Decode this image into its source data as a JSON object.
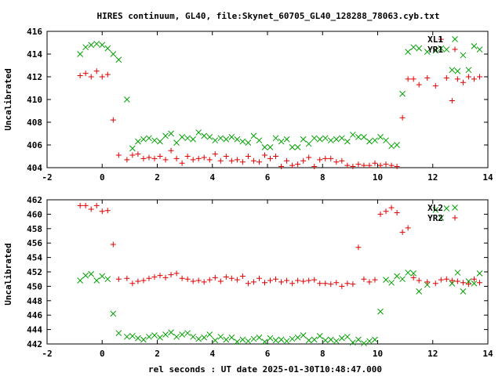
{
  "chart_data": [
    {
      "type": "scatter",
      "title": "HIRES continuum, GL40, file:Skynet_60705_GL40_128288_78063.cyb.txt",
      "xlabel": "",
      "ylabel": "Uncalibrated",
      "xlim": [
        -2,
        14
      ],
      "ylim": [
        404,
        416
      ],
      "xticks": [
        "-2",
        "0",
        "2",
        "4",
        "6",
        "8",
        "10",
        "12",
        "14"
      ],
      "yticks": [
        "404",
        "406",
        "408",
        "410",
        "412",
        "414",
        "416"
      ],
      "legend_position": "top-right",
      "grid": false,
      "series": [
        {
          "name": "XL1",
          "marker": "x",
          "color": "#00a000",
          "x": [
            -0.8,
            -0.6,
            -0.4,
            -0.2,
            0.0,
            0.2,
            0.4,
            0.6,
            0.9,
            1.1,
            1.3,
            1.5,
            1.7,
            1.9,
            2.1,
            2.3,
            2.5,
            2.7,
            2.9,
            3.1,
            3.3,
            3.5,
            3.7,
            3.9,
            4.1,
            4.3,
            4.5,
            4.7,
            4.9,
            5.1,
            5.3,
            5.5,
            5.7,
            5.9,
            6.1,
            6.3,
            6.5,
            6.7,
            6.9,
            7.1,
            7.3,
            7.5,
            7.7,
            7.9,
            8.1,
            8.3,
            8.5,
            8.7,
            8.9,
            9.1,
            9.3,
            9.5,
            9.7,
            9.9,
            10.1,
            10.3,
            10.5,
            10.7,
            10.9,
            11.1,
            11.3,
            11.5,
            11.8,
            12.1,
            12.3,
            12.5,
            12.7,
            12.9,
            13.1,
            13.3,
            13.5,
            13.7
          ],
          "y": [
            414.0,
            414.6,
            414.8,
            414.9,
            414.8,
            414.5,
            414.0,
            413.5,
            410.0,
            405.7,
            406.3,
            406.5,
            406.6,
            406.4,
            406.3,
            406.8,
            407.0,
            406.2,
            406.7,
            406.6,
            406.5,
            407.1,
            406.8,
            406.7,
            406.4,
            406.6,
            406.5,
            406.7,
            406.5,
            406.3,
            406.2,
            406.8,
            406.4,
            405.8,
            405.8,
            406.6,
            406.3,
            406.5,
            405.8,
            405.8,
            406.5,
            406.1,
            406.6,
            406.5,
            406.6,
            406.4,
            406.5,
            406.6,
            406.3,
            406.9,
            406.7,
            406.7,
            406.3,
            406.4,
            406.7,
            406.4,
            405.9,
            406.0,
            410.5,
            414.2,
            414.6,
            414.5,
            414.2,
            414.3,
            414.5,
            414.4,
            412.6,
            412.5,
            413.9,
            412.6,
            414.7,
            414.4
          ]
        },
        {
          "name": "YR1",
          "marker": "+",
          "color": "#e00000",
          "x": [
            -0.8,
            -0.6,
            -0.4,
            -0.2,
            0.0,
            0.2,
            0.4,
            0.6,
            0.9,
            1.1,
            1.3,
            1.5,
            1.7,
            1.9,
            2.1,
            2.3,
            2.5,
            2.7,
            2.9,
            3.1,
            3.3,
            3.5,
            3.7,
            3.9,
            4.1,
            4.3,
            4.5,
            4.7,
            4.9,
            5.1,
            5.3,
            5.5,
            5.7,
            5.9,
            6.1,
            6.3,
            6.5,
            6.7,
            6.9,
            7.1,
            7.3,
            7.5,
            7.7,
            7.9,
            8.1,
            8.3,
            8.5,
            8.7,
            8.9,
            9.1,
            9.3,
            9.5,
            9.7,
            9.9,
            10.1,
            10.3,
            10.5,
            10.7,
            10.9,
            11.1,
            11.3,
            11.5,
            11.8,
            12.1,
            12.3,
            12.5,
            12.7,
            12.9,
            13.1,
            13.3,
            13.5,
            13.7
          ],
          "y": [
            412.1,
            412.3,
            412.0,
            412.5,
            412.0,
            412.2,
            408.2,
            405.1,
            404.7,
            405.1,
            405.2,
            404.8,
            404.9,
            404.8,
            405.0,
            404.7,
            405.5,
            404.8,
            404.4,
            405.0,
            404.7,
            404.8,
            404.9,
            404.7,
            405.2,
            404.6,
            405.0,
            404.6,
            404.7,
            404.5,
            405.0,
            404.6,
            404.5,
            405.1,
            404.8,
            405.0,
            404.1,
            404.6,
            404.2,
            404.3,
            404.6,
            404.9,
            404.1,
            404.7,
            404.8,
            404.8,
            404.5,
            404.6,
            404.2,
            404.1,
            404.3,
            404.2,
            404.2,
            404.4,
            404.2,
            404.3,
            404.2,
            404.1,
            408.4,
            411.8,
            411.8,
            411.3,
            411.9,
            411.2,
            415.3,
            411.9,
            409.9,
            411.8,
            411.5,
            412.0,
            411.8,
            412.0
          ]
        }
      ]
    },
    {
      "type": "scatter",
      "title": "",
      "xlabel": "rel seconds : UT date 2025-01-30T10:48:47.000",
      "ylabel": "Uncalibrated",
      "xlim": [
        -2,
        14
      ],
      "ylim": [
        442,
        462
      ],
      "xticks": [
        "-2",
        "0",
        "2",
        "4",
        "6",
        "8",
        "10",
        "12",
        "14"
      ],
      "yticks": [
        "442",
        "444",
        "446",
        "448",
        "450",
        "452",
        "454",
        "456",
        "458",
        "460",
        "462"
      ],
      "legend_position": "top-right",
      "grid": false,
      "series": [
        {
          "name": "XL2",
          "marker": "x",
          "color": "#00a000",
          "x": [
            -0.8,
            -0.6,
            -0.4,
            -0.2,
            0.0,
            0.2,
            0.4,
            0.6,
            0.9,
            1.1,
            1.3,
            1.5,
            1.7,
            1.9,
            2.1,
            2.3,
            2.5,
            2.7,
            2.9,
            3.1,
            3.3,
            3.5,
            3.7,
            3.9,
            4.1,
            4.3,
            4.5,
            4.7,
            4.9,
            5.1,
            5.3,
            5.5,
            5.7,
            5.9,
            6.1,
            6.3,
            6.5,
            6.7,
            6.9,
            7.1,
            7.3,
            7.5,
            7.7,
            7.9,
            8.1,
            8.3,
            8.5,
            8.7,
            8.9,
            9.1,
            9.3,
            9.5,
            9.7,
            9.9,
            10.1,
            10.3,
            10.5,
            10.7,
            10.9,
            11.1,
            11.3,
            11.5,
            11.8,
            12.1,
            12.3,
            12.5,
            12.7,
            12.9,
            13.1,
            13.3,
            13.5,
            13.7
          ],
          "y": [
            450.8,
            451.5,
            451.7,
            450.8,
            451.4,
            451.0,
            446.2,
            443.5,
            443.0,
            443.1,
            442.8,
            442.6,
            443.0,
            443.2,
            442.9,
            443.3,
            443.6,
            443.0,
            443.3,
            443.5,
            443.0,
            442.7,
            442.9,
            443.3,
            442.5,
            443.0,
            442.6,
            442.9,
            442.3,
            442.6,
            442.4,
            442.7,
            442.9,
            442.3,
            442.8,
            442.5,
            442.6,
            442.4,
            442.7,
            442.9,
            443.2,
            442.5,
            442.6,
            443.1,
            442.5,
            442.6,
            442.4,
            442.8,
            443.0,
            442.2,
            442.6,
            442.1,
            442.4,
            442.6,
            446.5,
            450.9,
            450.5,
            451.4,
            451.0,
            451.9,
            451.8,
            449.3,
            450.2,
            460.6,
            459.5,
            460.8,
            450.4,
            451.9,
            449.3,
            450.7,
            450.4,
            451.8
          ]
        },
        {
          "name": "YR2",
          "marker": "+",
          "color": "#e00000",
          "x": [
            -0.8,
            -0.6,
            -0.4,
            -0.2,
            0.0,
            0.2,
            0.4,
            0.6,
            0.9,
            1.1,
            1.3,
            1.5,
            1.7,
            1.9,
            2.1,
            2.3,
            2.5,
            2.7,
            2.9,
            3.1,
            3.3,
            3.5,
            3.7,
            3.9,
            4.1,
            4.3,
            4.5,
            4.7,
            4.9,
            5.1,
            5.3,
            5.5,
            5.7,
            5.9,
            6.1,
            6.3,
            6.5,
            6.7,
            6.9,
            7.1,
            7.3,
            7.5,
            7.7,
            7.9,
            8.1,
            8.3,
            8.5,
            8.7,
            8.9,
            9.1,
            9.3,
            9.5,
            9.7,
            9.9,
            10.1,
            10.3,
            10.5,
            10.7,
            10.9,
            11.1,
            11.3,
            11.5,
            11.8,
            12.1,
            12.3,
            12.5,
            12.7,
            12.9,
            13.1,
            13.3,
            13.5,
            13.7
          ],
          "y": [
            461.2,
            461.2,
            460.7,
            461.2,
            460.4,
            460.5,
            455.8,
            451.0,
            451.1,
            450.4,
            450.7,
            450.8,
            451.1,
            451.3,
            451.5,
            451.2,
            451.6,
            451.8,
            451.1,
            451.0,
            450.7,
            450.8,
            450.6,
            450.9,
            451.2,
            450.7,
            451.3,
            451.1,
            450.9,
            451.4,
            450.4,
            450.6,
            451.1,
            450.5,
            450.8,
            451.0,
            450.6,
            450.8,
            450.4,
            450.8,
            450.7,
            450.8,
            450.9,
            450.4,
            450.4,
            450.3,
            450.5,
            450.0,
            450.4,
            450.3,
            455.4,
            451.0,
            450.6,
            450.9,
            460.0,
            460.4,
            460.9,
            460.2,
            457.5,
            458.1,
            451.2,
            450.8,
            450.6,
            450.4,
            450.9,
            451.0,
            450.8,
            450.7,
            450.5,
            450.3,
            451.0,
            450.5
          ]
        }
      ]
    }
  ]
}
